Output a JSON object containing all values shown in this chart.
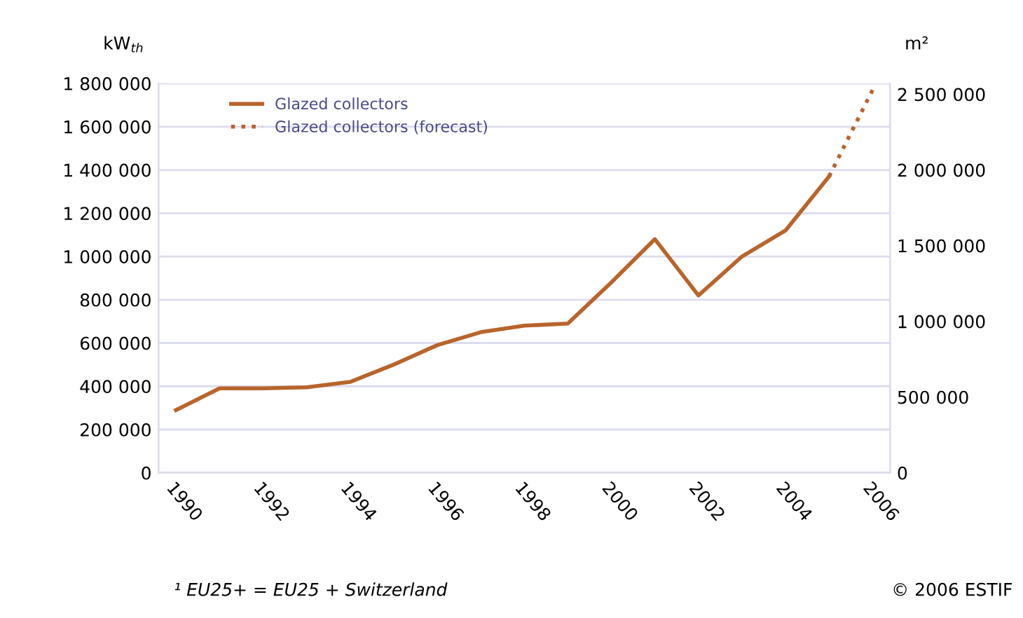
{
  "chart_data": {
    "type": "line",
    "ylabel": "kW$_{th}$",
    "y2label": "m²",
    "series": [
      {
        "name": "Glazed collectors",
        "color": "#b8642c",
        "line_style": "solid",
        "x": [
          1990,
          1991,
          1992,
          1993,
          1994,
          1995,
          1996,
          1997,
          1998,
          1999,
          2000,
          2001,
          2002,
          2003,
          2004,
          2005
        ],
        "values": [
          290000,
          390000,
          390000,
          395000,
          420000,
          500000,
          590000,
          650000,
          680000,
          690000,
          880000,
          1080000,
          820000,
          1000000,
          1120000,
          1370000
        ]
      },
      {
        "name": "Glazed collectors (forecast)",
        "color": "#b8642c",
        "line_style": "dotted",
        "x": [
          2005,
          2006
        ],
        "values": [
          1370000,
          1770000
        ]
      }
    ],
    "xlim": [
      1989.6,
      2006.4
    ],
    "xticks": [
      1990,
      1992,
      1994,
      1996,
      1998,
      2000,
      2002,
      2004,
      2006
    ],
    "ylim": [
      0,
      1800000
    ],
    "yticks": [
      0,
      {
        "value": 200000,
        "label": "200 000"
      },
      {
        "value": 400000,
        "label": "400 000"
      },
      {
        "value": 600000,
        "label": "600 000"
      },
      {
        "value": 800000,
        "label": "800 000"
      },
      {
        "value": 1000000,
        "label": "1 000 000"
      },
      {
        "value": 1200000,
        "label": "1 200 000"
      },
      {
        "value": 1400000,
        "label": "1 400 000"
      },
      {
        "value": 1600000,
        "label": "1 600 000"
      },
      {
        "value": 1800000,
        "label": "1 800 000"
      }
    ],
    "y2lim": [
      0,
      2571430
    ],
    "y2ticks": [
      0,
      {
        "value": 500000,
        "label": "500 000"
      },
      {
        "value": 1000000,
        "label": "1 000 000"
      },
      {
        "value": 1500000,
        "label": "1 500 000"
      },
      {
        "value": 2000000,
        "label": "2 000 000"
      },
      {
        "value": 2500000,
        "label": "2 500 000"
      }
    ],
    "grid": "y",
    "legend": "top left",
    "annotations": [
      "¹ EU25+ = EU25 + Switzerland",
      "© 2006 ESTIF"
    ]
  }
}
